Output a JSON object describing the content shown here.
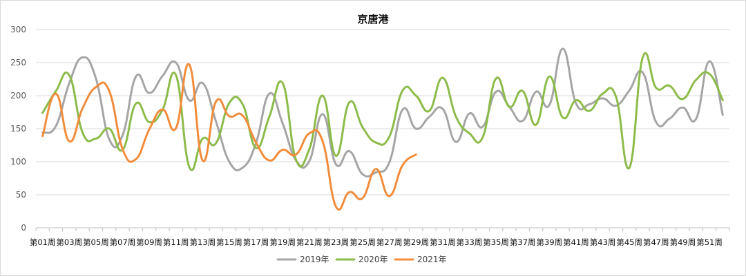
{
  "chart_data": {
    "type": "line",
    "title": "京唐港",
    "xlabel": "",
    "ylabel": "",
    "ylim": [
      0,
      300
    ],
    "yticks": [
      0,
      50,
      100,
      150,
      200,
      250,
      300
    ],
    "xtick_labels": [
      "第01周",
      "第03周",
      "第05周",
      "第07周",
      "第09周",
      "第11周",
      "第13周",
      "第15周",
      "第17周",
      "第19周",
      "第21周",
      "第23周",
      "第25周",
      "第27周",
      "第29周",
      "第31周",
      "第33周",
      "第35周",
      "第37周",
      "第39周",
      "第41周",
      "第43周",
      "第45周",
      "第47周",
      "第49周",
      "第51周"
    ],
    "x_tick_text": [
      "第01周",
      "第03周",
      "第05周",
      "第07周",
      "第09周",
      "第11周",
      "第13周",
      "第15周",
      "第17周",
      "第19周",
      "第21周",
      "第23周",
      "第25周",
      "第27周",
      "第29周",
      "第31周",
      "第33周",
      "第35周",
      "第37周",
      "第39周",
      "第41周",
      "第43周",
      "第45周",
      "第47周",
      "第49周",
      "第51周"
    ],
    "x_weeks": 52,
    "grid": true,
    "legend_position": "bottom",
    "series": [
      {
        "name": "2019年",
        "color": "#a5a5a5",
        "values": [
          144,
          154,
          219,
          258,
          226,
          134,
          140,
          229,
          204,
          230,
          250,
          193,
          219,
          161,
          100,
          91,
          128,
          203,
          158,
          102,
          101,
          172,
          96,
          116,
          81,
          84,
          99,
          179,
          150,
          168,
          180,
          130,
          173,
          153,
          206,
          183,
          162,
          206,
          186,
          271,
          188,
          187,
          196,
          185,
          208,
          235,
          160,
          165,
          182,
          165,
          252,
          171
        ]
      },
      {
        "name": "2020年",
        "color": "#8dbb4a",
        "values": [
          174,
          207,
          231,
          144,
          135,
          150,
          118,
          188,
          160,
          179,
          231,
          92,
          135,
          128,
          189,
          187,
          121,
          168,
          219,
          103,
          119,
          200,
          109,
          190,
          152,
          129,
          138,
          208,
          200,
          177,
          227,
          168,
          143,
          137,
          226,
          183,
          207,
          156,
          229,
          167,
          193,
          177,
          203,
          198,
          91,
          258,
          212,
          215,
          195,
          224,
          233,
          193
        ]
      },
      {
        "name": "2021年",
        "color": "#f28c3b",
        "values": [
          139,
          203,
          131,
          181,
          213,
          207,
          119,
          104,
          149,
          179,
          151,
          247,
          102,
          191,
          169,
          170,
          129,
          102,
          118,
          111,
          143,
          131,
          32,
          54,
          45,
          89,
          48,
          95,
          111
        ]
      }
    ]
  }
}
